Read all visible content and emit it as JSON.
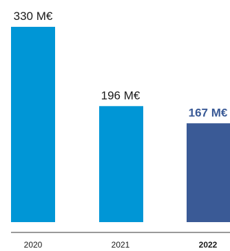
{
  "chart_data": {
    "type": "bar",
    "categories": [
      "2020",
      "2021",
      "2022"
    ],
    "values": [
      330,
      196,
      167
    ],
    "value_labels": [
      "330 M€",
      "196 M€",
      "167 M€"
    ],
    "highlight_category": "2022",
    "colors": {
      "bar": "#0096d6",
      "highlight_bar": "#3a5a96",
      "highlight_label": "#3a5a96",
      "axis": "#333333"
    },
    "ylim": [
      0,
      330
    ],
    "grid": false,
    "legend": "none"
  }
}
